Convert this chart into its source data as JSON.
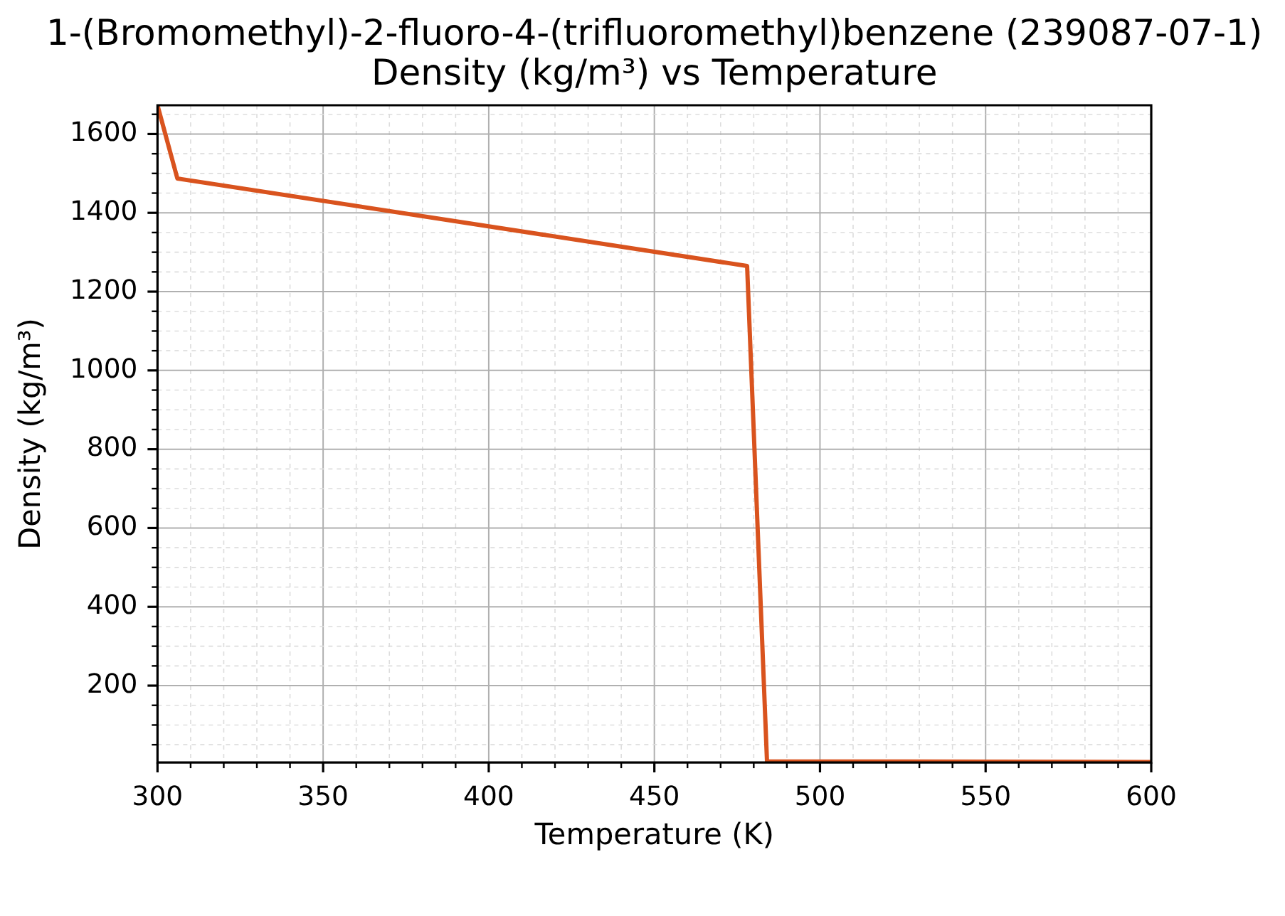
{
  "chart_data": {
    "type": "line",
    "title": "1-(Bromomethyl)-2-fluoro-4-(trifluoromethyl)benzene (239087-07-1)",
    "subtitle": "Density (kg/m³) vs Temperature",
    "xlabel": "Temperature (K)",
    "ylabel": "Density (kg/m³)",
    "x": [
      300,
      306,
      478,
      484,
      600
    ],
    "series": [
      {
        "color": "#d9531e",
        "values": [
          1673,
          1487,
          1265,
          8,
          6
        ]
      }
    ],
    "xlim": [
      300,
      600
    ],
    "ylim": [
      5,
      1673
    ],
    "xticks": [
      300,
      {
        "value": 310,
        "label": null
      },
      {
        "value": 320,
        "label": null
      },
      {
        "value": 330,
        "label": null
      },
      {
        "value": 340,
        "label": null
      },
      350,
      {
        "value": 360,
        "label": null
      },
      {
        "value": 370,
        "label": null
      },
      {
        "value": 380,
        "label": null
      },
      {
        "value": 390,
        "label": null
      },
      400,
      {
        "value": 410,
        "label": null
      },
      {
        "value": 420,
        "label": null
      },
      {
        "value": 430,
        "label": null
      },
      {
        "value": 440,
        "label": null
      },
      450,
      {
        "value": 460,
        "label": null
      },
      {
        "value": 470,
        "label": null
      },
      {
        "value": 480,
        "label": null
      },
      {
        "value": 490,
        "label": null
      },
      500,
      {
        "value": 510,
        "label": null
      },
      {
        "value": 520,
        "label": null
      },
      {
        "value": 530,
        "label": null
      },
      {
        "value": 540,
        "label": null
      },
      550,
      {
        "value": 560,
        "label": null
      },
      {
        "value": 570,
        "label": null
      },
      {
        "value": 580,
        "label": null
      },
      {
        "value": 590,
        "label": null
      },
      600
    ],
    "yticks": [
      {
        "value": 50,
        "label": null
      },
      {
        "value": 100,
        "label": null
      },
      {
        "value": 150,
        "label": null
      },
      200,
      {
        "value": 250,
        "label": null
      },
      {
        "value": 300,
        "label": null
      },
      {
        "value": 350,
        "label": null
      },
      400,
      {
        "value": 450,
        "label": null
      },
      {
        "value": 500,
        "label": null
      },
      {
        "value": 550,
        "label": null
      },
      600,
      {
        "value": 650,
        "label": null
      },
      {
        "value": 700,
        "label": null
      },
      {
        "value": 750,
        "label": null
      },
      800,
      {
        "value": 850,
        "label": null
      },
      {
        "value": 900,
        "label": null
      },
      {
        "value": 950,
        "label": null
      },
      1000,
      {
        "value": 1050,
        "label": null
      },
      {
        "value": 1100,
        "label": null
      },
      {
        "value": 1150,
        "label": null
      },
      1200,
      {
        "value": 1250,
        "label": null
      },
      {
        "value": 1300,
        "label": null
      },
      {
        "value": 1350,
        "label": null
      },
      1400,
      {
        "value": 1450,
        "label": null
      },
      {
        "value": 1500,
        "label": null
      },
      {
        "value": 1550,
        "label": null
      },
      1600,
      {
        "value": 1650,
        "label": null
      }
    ],
    "grid": true,
    "marker": "none",
    "line_style": "solid"
  }
}
